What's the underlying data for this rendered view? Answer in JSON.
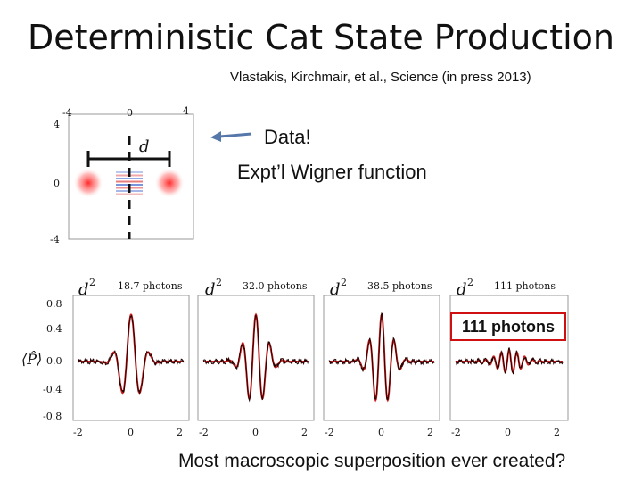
{
  "title": "Deterministic Cat State  Production",
  "citation": "Vlastakis, Kirchmair, et al.,  Science (in press 2013)",
  "wigner": {
    "label_data": "Data!",
    "label_desc": "Expt’l Wigner function",
    "distance_label": "d",
    "x_ticks": [
      "-4",
      "0",
      "4"
    ],
    "y_ticks": [
      "4",
      "0",
      "-4"
    ]
  },
  "panels": [
    {
      "label_prefix": "d",
      "label_exp": "2",
      "label_value": "18.7 photons",
      "x_ticks": [
        "-2",
        "0",
        "2"
      ],
      "freq": 7.5
    },
    {
      "label_prefix": "d",
      "label_exp": "2",
      "label_value": "32.0 photons",
      "x_ticks": [
        "-2",
        "0",
        "2"
      ],
      "freq": 10
    },
    {
      "label_prefix": "d",
      "label_exp": "2",
      "label_value": "38.5 photons",
      "x_ticks": [
        "-2",
        "0",
        "2"
      ],
      "freq": 11
    },
    {
      "label_prefix": "d",
      "label_exp": "2",
      "label_value": "111 photons",
      "x_ticks": [
        "-2",
        "0",
        "2"
      ],
      "freq": 18
    }
  ],
  "y_axis": {
    "label": "⟨P̂⟩",
    "ticks": [
      "0.8",
      "0.4",
      "0.0",
      "-0.4",
      "-0.8"
    ]
  },
  "callout": "111 photons",
  "bottom_question": "Most macroscopic superposition ever created?",
  "colors": {
    "trace": "#2a0000",
    "fit": "#d02020",
    "arrow": "#5577aa",
    "callout_border": "#d01010"
  }
}
